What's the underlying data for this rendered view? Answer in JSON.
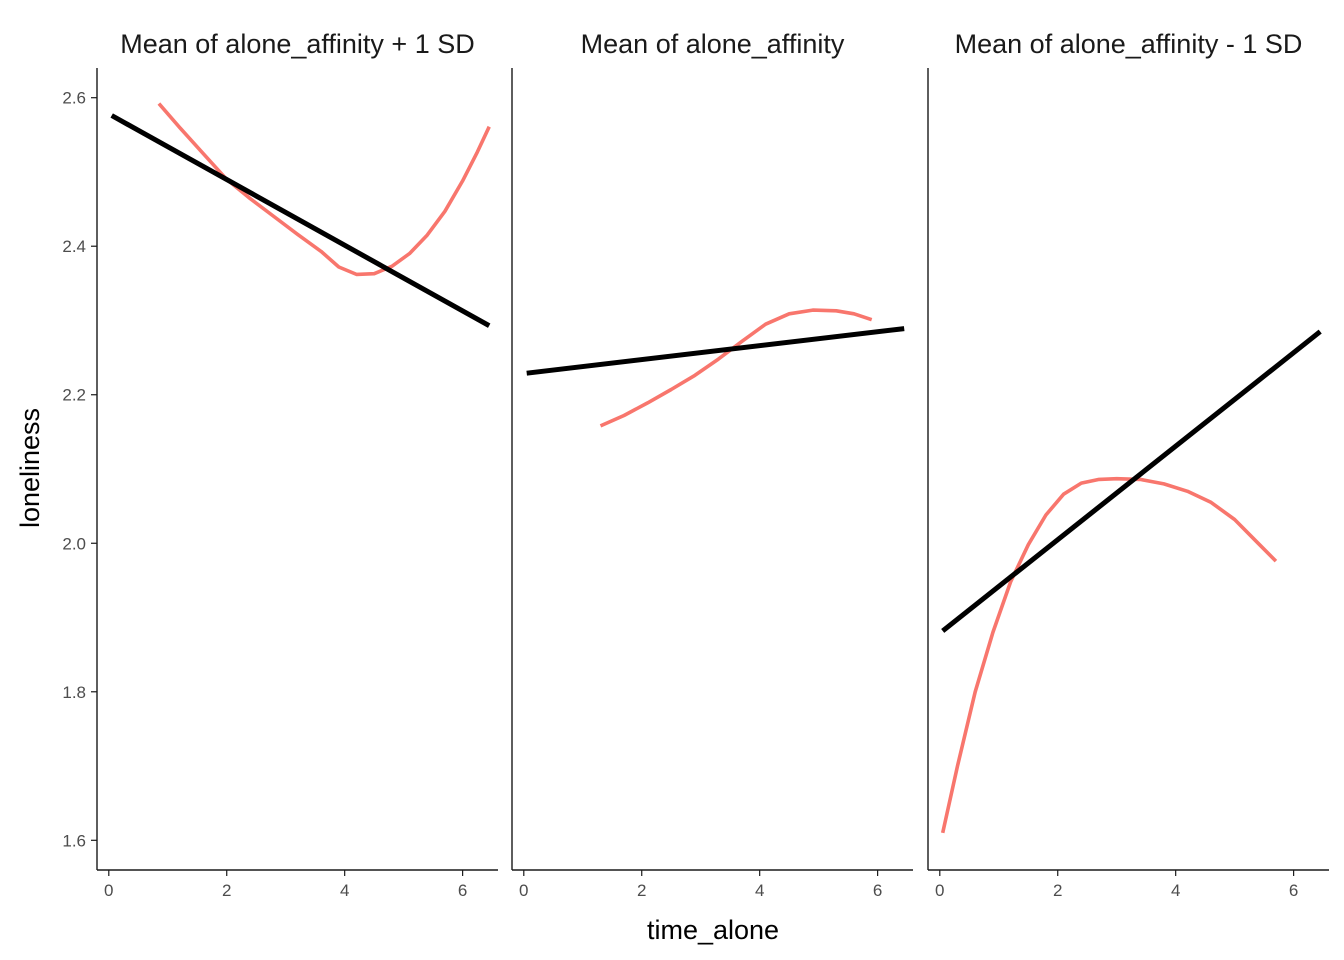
{
  "chart_data": {
    "type": "line",
    "xlabel": "time_alone",
    "ylabel": "loneliness",
    "xlim": [
      -0.2,
      6.6
    ],
    "ylim": [
      1.56,
      2.64
    ],
    "x_ticks": [
      0,
      2,
      4,
      6
    ],
    "y_ticks": [
      "1.6",
      "1.8",
      "2.0",
      "2.2",
      "2.4",
      "2.6"
    ],
    "grid": false,
    "legend": "none",
    "colors": {
      "linear": "#000000",
      "smooth": "#F8766D",
      "axis": "#1a1a1a"
    },
    "panels": [
      {
        "title": "Mean of alone_affinity + 1 SD",
        "series": [
          {
            "kind": "linear",
            "x": [
              0.05,
              6.45
            ],
            "y": [
              2.576,
              2.293
            ]
          },
          {
            "kind": "smooth",
            "x": [
              0.85,
              1.2,
              1.6,
              2.0,
              2.4,
              2.8,
              3.2,
              3.6,
              3.9,
              4.2,
              4.5,
              4.8,
              5.1,
              5.4,
              5.7,
              6.0,
              6.25,
              6.45
            ],
            "y": [
              2.592,
              2.56,
              2.525,
              2.49,
              2.464,
              2.44,
              2.416,
              2.393,
              2.372,
              2.362,
              2.363,
              2.373,
              2.39,
              2.415,
              2.447,
              2.488,
              2.527,
              2.561
            ]
          }
        ]
      },
      {
        "title": "Mean of alone_affinity",
        "series": [
          {
            "kind": "linear",
            "x": [
              0.05,
              6.45
            ],
            "y": [
              2.229,
              2.289
            ]
          },
          {
            "kind": "smooth",
            "x": [
              1.3,
              1.7,
              2.1,
              2.5,
              2.9,
              3.3,
              3.7,
              4.1,
              4.5,
              4.9,
              5.3,
              5.6,
              5.9
            ],
            "y": [
              2.158,
              2.172,
              2.189,
              2.207,
              2.226,
              2.248,
              2.272,
              2.295,
              2.309,
              2.314,
              2.313,
              2.309,
              2.301
            ]
          }
        ]
      },
      {
        "title": "Mean of alone_affinity - 1 SD",
        "series": [
          {
            "kind": "linear",
            "x": [
              0.05,
              6.45
            ],
            "y": [
              1.882,
              2.285
            ]
          },
          {
            "kind": "smooth",
            "x": [
              0.05,
              0.3,
              0.6,
              0.9,
              1.2,
              1.5,
              1.8,
              2.1,
              2.4,
              2.7,
              3.0,
              3.4,
              3.8,
              4.2,
              4.6,
              5.0,
              5.4,
              5.7
            ],
            "y": [
              1.61,
              1.7,
              1.8,
              1.88,
              1.948,
              1.998,
              2.038,
              2.066,
              2.081,
              2.086,
              2.087,
              2.086,
              2.08,
              2.07,
              2.055,
              2.032,
              2.0,
              1.976
            ]
          }
        ]
      }
    ]
  }
}
